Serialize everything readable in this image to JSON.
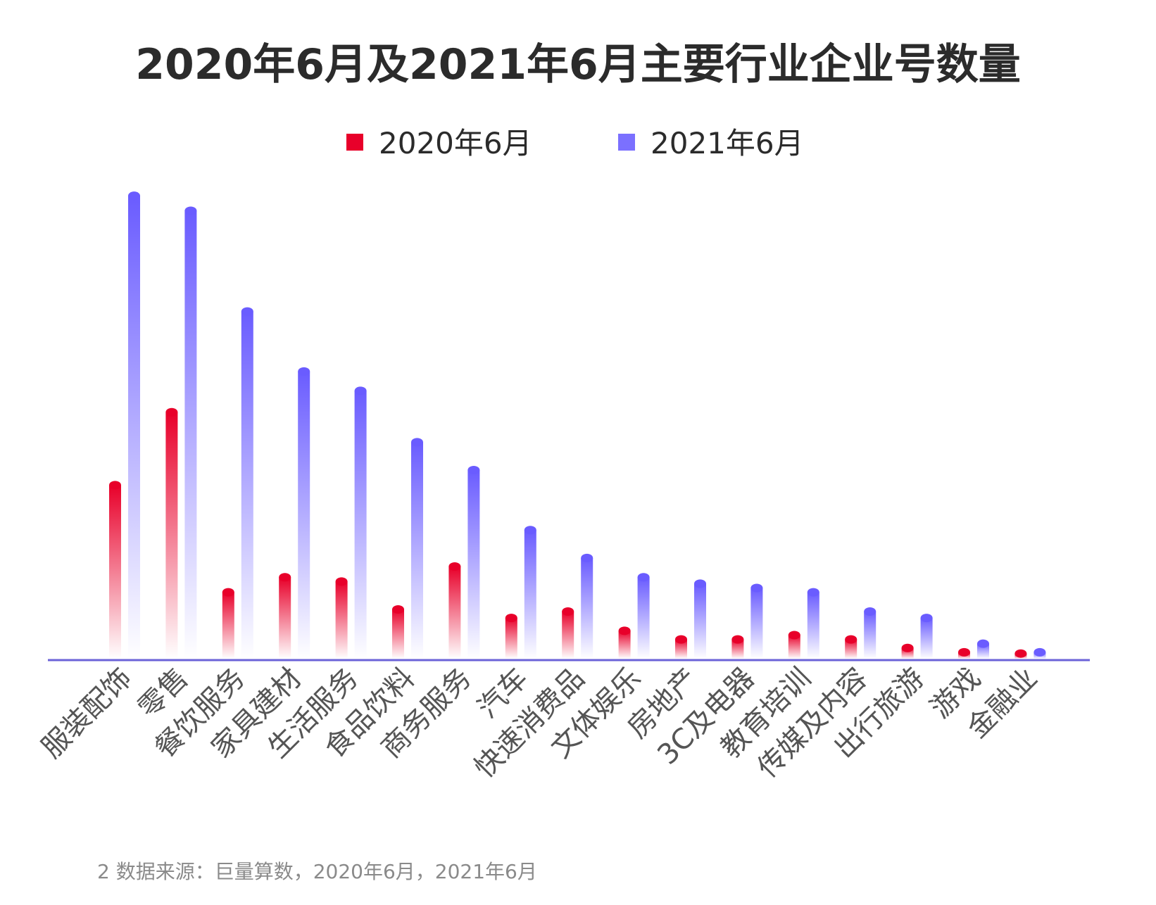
{
  "chart_data": {
    "type": "bar",
    "title": "2020年6月及2021年6月主要行业企业号数量",
    "xlabel": "",
    "ylabel": "",
    "categories": [
      "服装配饰",
      "零售",
      "餐饮服务",
      "家具建材",
      "生活服务",
      "食品饮料",
      "商务服务",
      "汽车",
      "快速消费品",
      "文体娱乐",
      "房地产",
      "3C及电器",
      "教育培训",
      "传媒及内容",
      "出行旅游",
      "游戏",
      "金融业"
    ],
    "series": [
      {
        "name": "2020年6月",
        "color": "#e8002a",
        "values": [
          40.5,
          57.5,
          15.5,
          19.0,
          18.0,
          11.5,
          21.5,
          9.5,
          11.0,
          6.5,
          4.5,
          4.5,
          5.5,
          4.5,
          2.5,
          1.5,
          1.2
        ]
      },
      {
        "name": "2021年6月",
        "color": "#7b70ff",
        "values": [
          108.0,
          104.5,
          81.0,
          67.0,
          62.5,
          50.5,
          44.0,
          30.0,
          23.5,
          19.0,
          17.5,
          16.5,
          15.5,
          11.0,
          9.5,
          3.5,
          1.5
        ]
      }
    ],
    "legend_position": "top-center",
    "grid": false,
    "ylim": [
      0,
      110
    ]
  },
  "footnote": "2 数据来源：巨量算数，2020年6月，2021年6月"
}
